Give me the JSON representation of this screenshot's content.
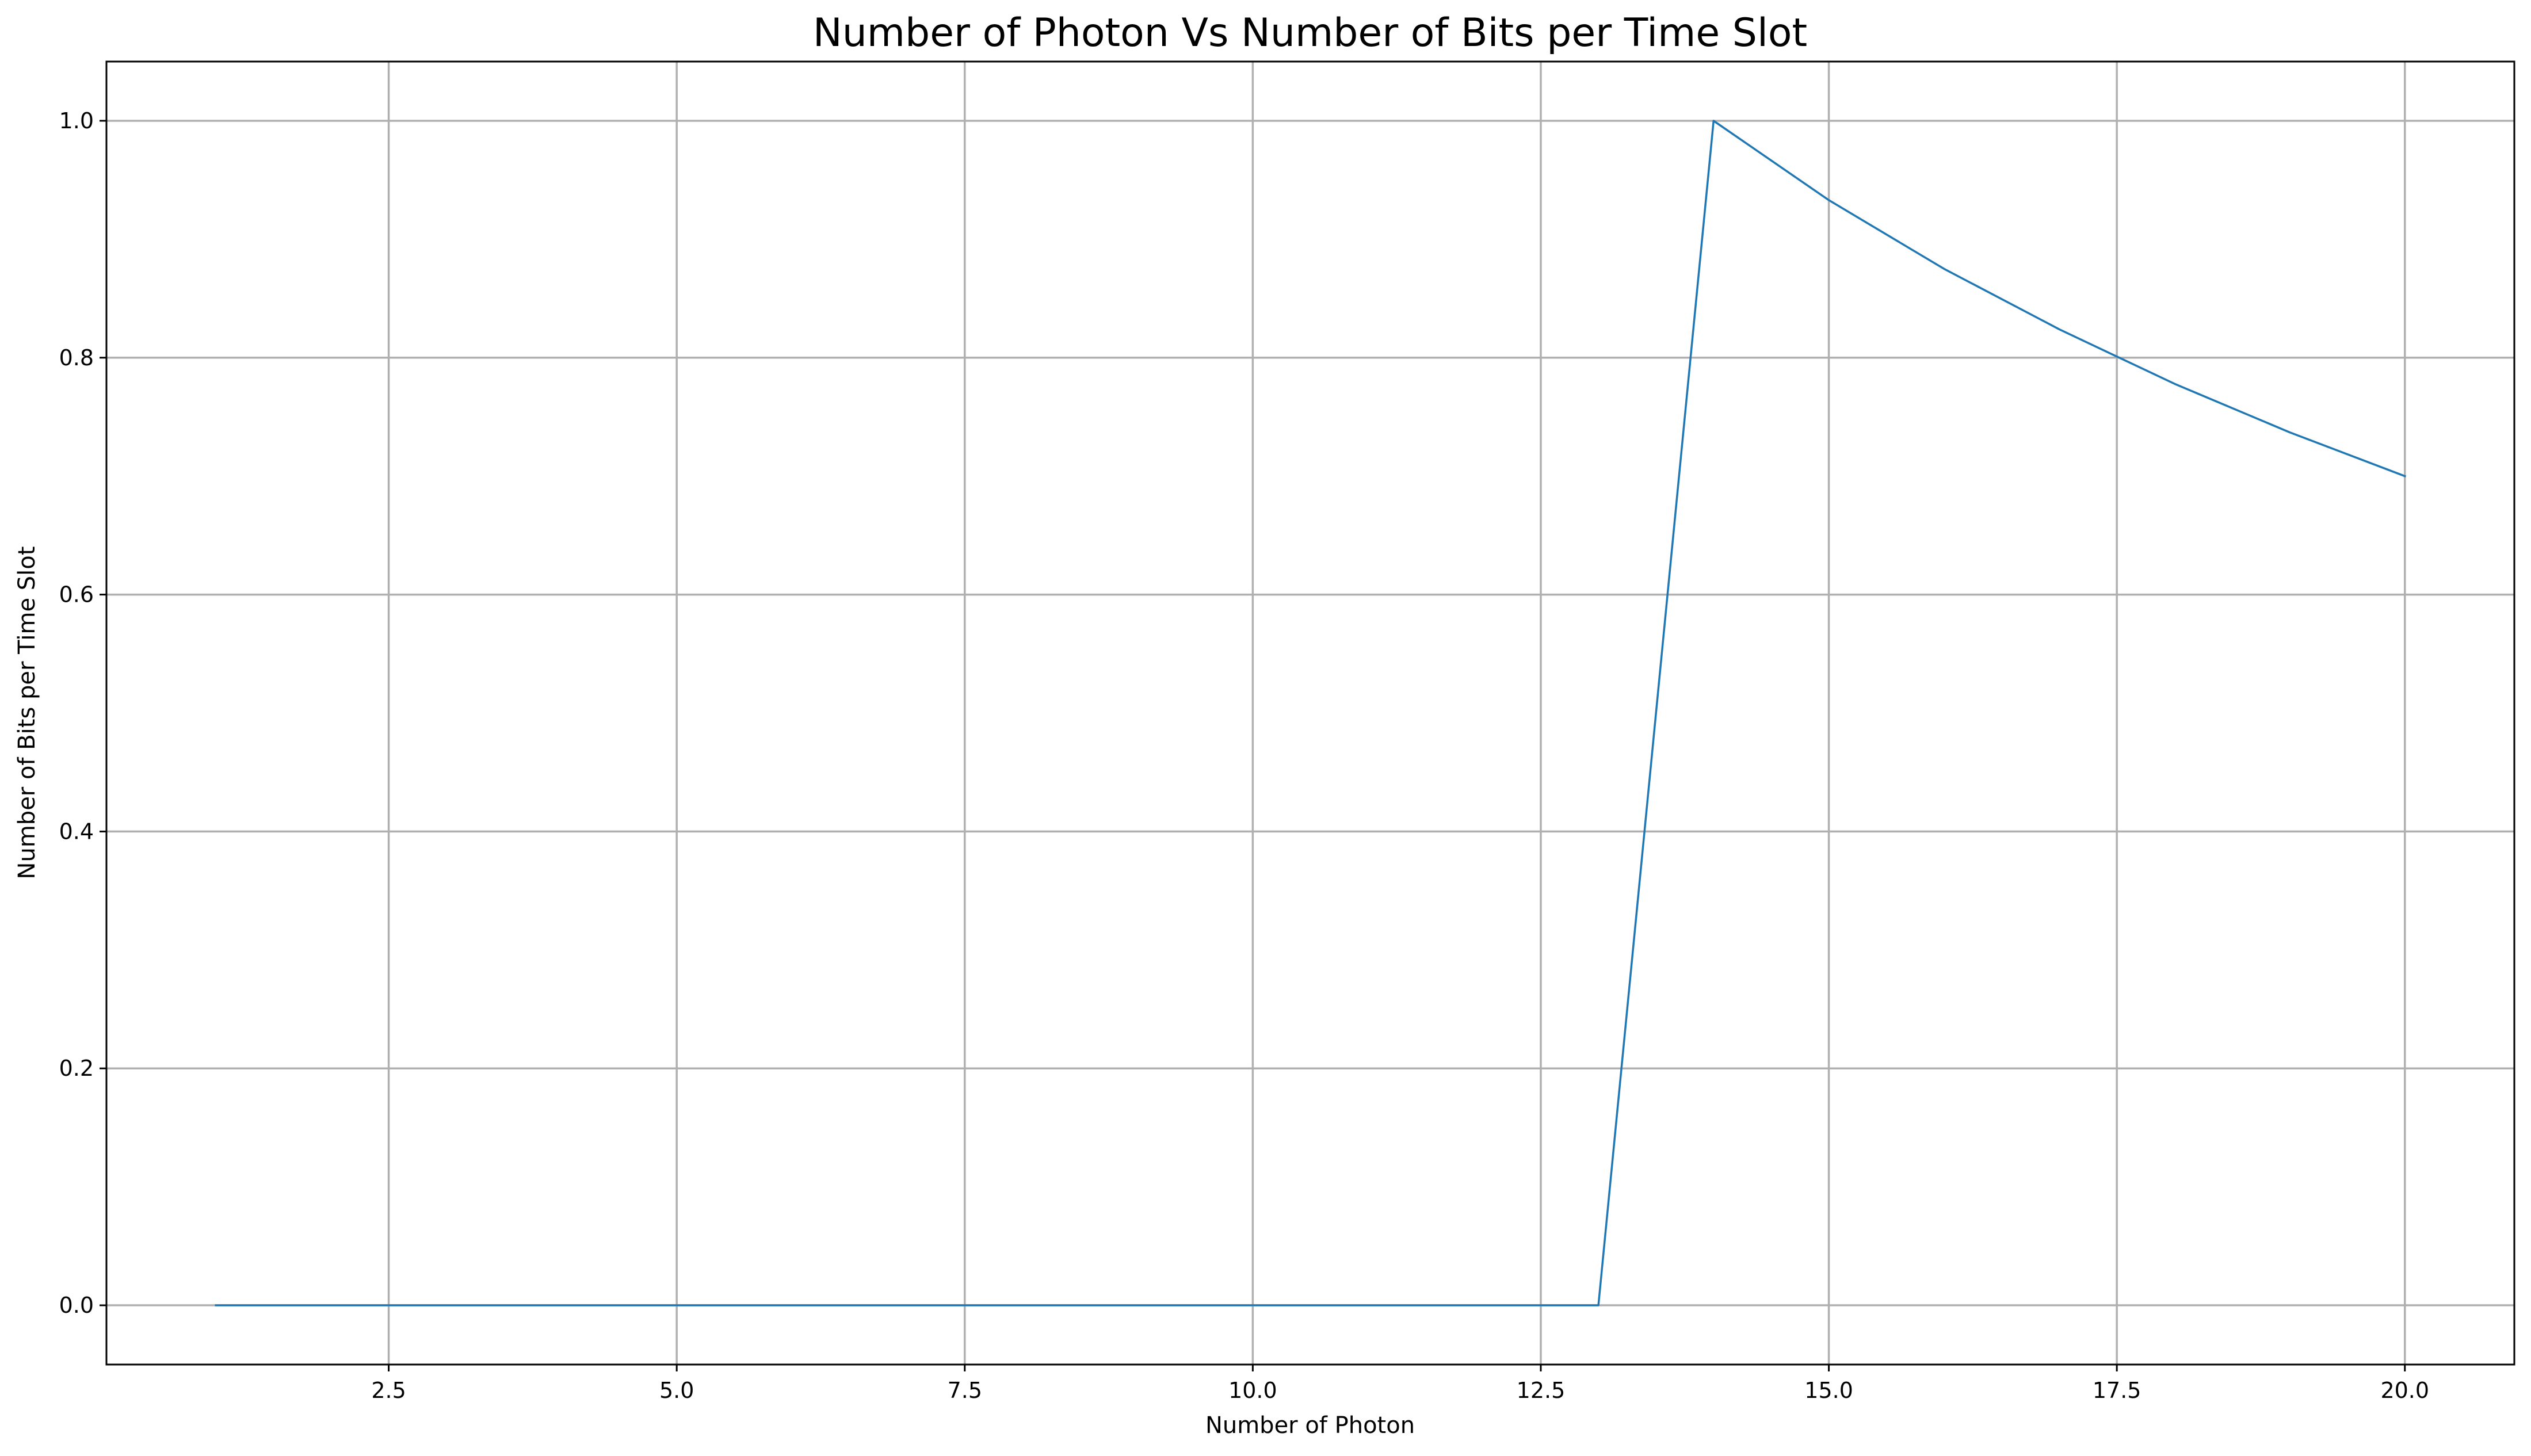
{
  "chart_data": {
    "type": "line",
    "title": "Number of Photon Vs Number of Bits per Time Slot",
    "xlabel": "Number of Photon",
    "ylabel": "Number of Bits per Time Slot",
    "xlim": [
      0.05,
      20.95
    ],
    "ylim": [
      -0.05,
      1.05
    ],
    "xticks": [
      2.5,
      5.0,
      7.5,
      10.0,
      12.5,
      15.0,
      17.5,
      20.0
    ],
    "xtick_labels": [
      "2.5",
      "5.0",
      "7.5",
      "10.0",
      "12.5",
      "15.0",
      "17.5",
      "20.0"
    ],
    "yticks": [
      0.0,
      0.2,
      0.4,
      0.6,
      0.8,
      1.0
    ],
    "ytick_labels": [
      "0.0",
      "0.2",
      "0.4",
      "0.6",
      "0.8",
      "1.0"
    ],
    "grid": true,
    "legend": "none",
    "line_color": "#1f77b4",
    "series": [
      {
        "x": [
          1,
          2,
          3,
          4,
          5,
          6,
          7,
          8,
          9,
          10,
          11,
          12,
          13,
          14,
          15,
          16,
          17,
          18,
          19,
          20
        ],
        "values": [
          0,
          0,
          0,
          0,
          0,
          0,
          0,
          0,
          0,
          0,
          0,
          0,
          0,
          1.0,
          0.933,
          0.875,
          0.824,
          0.778,
          0.737,
          0.7
        ]
      }
    ]
  }
}
